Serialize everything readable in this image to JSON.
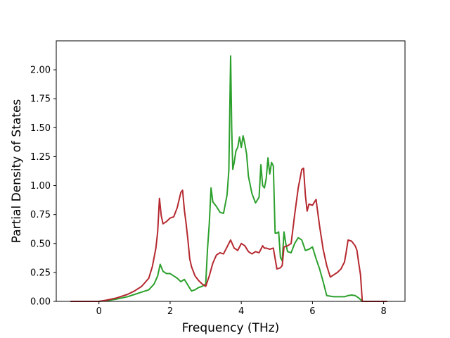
{
  "chart_data": {
    "type": "line",
    "title": "",
    "xlabel": "Frequency (THz)",
    "ylabel": "Partial Density of States",
    "xlim": [
      -1.2,
      8.6
    ],
    "ylim": [
      0,
      2.25
    ],
    "xticks": [
      0,
      2,
      4,
      6,
      8
    ],
    "xtick_labels": [
      "0",
      "2",
      "4",
      "6",
      "8"
    ],
    "yticks": [
      0,
      0.25,
      0.5,
      0.75,
      1.0,
      1.25,
      1.5,
      1.75,
      2.0
    ],
    "ytick_labels": [
      "0.00",
      "0.25",
      "0.50",
      "0.75",
      "1.00",
      "1.25",
      "1.50",
      "1.75",
      "2.00"
    ],
    "grid": false,
    "series": [
      {
        "color": "#2ca02c",
        "x": [
          -0.8,
          0.0,
          0.2,
          0.5,
          0.8,
          1.0,
          1.2,
          1.4,
          1.55,
          1.65,
          1.72,
          1.8,
          1.9,
          2.0,
          2.1,
          2.2,
          2.3,
          2.4,
          2.5,
          2.6,
          2.7,
          2.8,
          2.9,
          3.0,
          3.05,
          3.1,
          3.15,
          3.2,
          3.3,
          3.4,
          3.5,
          3.6,
          3.65,
          3.7,
          3.73,
          3.76,
          3.8,
          3.85,
          3.9,
          3.95,
          4.0,
          4.05,
          4.1,
          4.15,
          4.2,
          4.3,
          4.4,
          4.5,
          4.55,
          4.6,
          4.65,
          4.7,
          4.75,
          4.8,
          4.85,
          4.9,
          4.95,
          5.0,
          5.05,
          5.1,
          5.15,
          5.2,
          5.25,
          5.3,
          5.4,
          5.5,
          5.6,
          5.7,
          5.8,
          5.9,
          6.0,
          6.1,
          6.2,
          6.3,
          6.4,
          6.5,
          6.6,
          6.7,
          6.8,
          6.9,
          7.0,
          7.1,
          7.2,
          7.3,
          7.4,
          7.5,
          8.1
        ],
        "y": [
          0.0,
          0.0,
          0.005,
          0.02,
          0.04,
          0.06,
          0.08,
          0.1,
          0.15,
          0.22,
          0.32,
          0.26,
          0.24,
          0.24,
          0.22,
          0.2,
          0.17,
          0.19,
          0.14,
          0.09,
          0.1,
          0.12,
          0.13,
          0.15,
          0.45,
          0.67,
          0.98,
          0.86,
          0.82,
          0.77,
          0.76,
          0.92,
          1.13,
          2.12,
          1.5,
          1.14,
          1.2,
          1.3,
          1.33,
          1.42,
          1.33,
          1.43,
          1.36,
          1.27,
          1.08,
          0.93,
          0.85,
          0.9,
          1.18,
          1.0,
          0.98,
          1.06,
          1.24,
          1.1,
          1.2,
          1.17,
          0.59,
          0.59,
          0.6,
          0.38,
          0.35,
          0.6,
          0.5,
          0.43,
          0.42,
          0.5,
          0.55,
          0.53,
          0.44,
          0.45,
          0.47,
          0.37,
          0.28,
          0.17,
          0.05,
          0.045,
          0.04,
          0.04,
          0.04,
          0.04,
          0.05,
          0.055,
          0.05,
          0.03,
          0.0,
          0.0,
          0.0
        ]
      },
      {
        "color": "#b5282f",
        "x": [
          -0.8,
          0.0,
          0.2,
          0.5,
          0.8,
          1.0,
          1.2,
          1.4,
          1.5,
          1.6,
          1.65,
          1.7,
          1.75,
          1.8,
          1.9,
          2.0,
          2.1,
          2.2,
          2.3,
          2.35,
          2.4,
          2.45,
          2.5,
          2.55,
          2.6,
          2.7,
          2.8,
          2.9,
          3.0,
          3.1,
          3.2,
          3.3,
          3.4,
          3.5,
          3.6,
          3.7,
          3.8,
          3.9,
          4.0,
          4.1,
          4.2,
          4.3,
          4.4,
          4.5,
          4.6,
          4.65,
          4.7,
          4.8,
          4.9,
          5.0,
          5.1,
          5.15,
          5.2,
          5.3,
          5.4,
          5.5,
          5.6,
          5.7,
          5.75,
          5.8,
          5.85,
          5.9,
          6.0,
          6.1,
          6.2,
          6.3,
          6.4,
          6.5,
          6.6,
          6.7,
          6.8,
          6.9,
          6.95,
          7.0,
          7.1,
          7.2,
          7.25,
          7.3,
          7.35,
          7.4,
          8.1
        ],
        "y": [
          0.0,
          0.0,
          0.01,
          0.03,
          0.06,
          0.09,
          0.13,
          0.2,
          0.3,
          0.46,
          0.6,
          0.89,
          0.74,
          0.67,
          0.69,
          0.72,
          0.73,
          0.81,
          0.94,
          0.96,
          0.79,
          0.67,
          0.53,
          0.37,
          0.3,
          0.22,
          0.18,
          0.15,
          0.13,
          0.22,
          0.33,
          0.4,
          0.42,
          0.41,
          0.47,
          0.53,
          0.46,
          0.44,
          0.5,
          0.48,
          0.43,
          0.41,
          0.43,
          0.42,
          0.48,
          0.46,
          0.46,
          0.45,
          0.46,
          0.28,
          0.29,
          0.31,
          0.47,
          0.48,
          0.5,
          0.75,
          0.98,
          1.14,
          1.15,
          0.92,
          0.78,
          0.84,
          0.83,
          0.88,
          0.65,
          0.45,
          0.31,
          0.21,
          0.23,
          0.25,
          0.28,
          0.34,
          0.43,
          0.53,
          0.52,
          0.48,
          0.44,
          0.33,
          0.23,
          0.0,
          0.0
        ]
      }
    ]
  }
}
